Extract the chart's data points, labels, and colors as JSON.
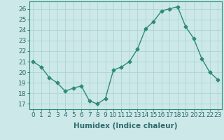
{
  "x": [
    0,
    1,
    2,
    3,
    4,
    5,
    6,
    7,
    8,
    9,
    10,
    11,
    12,
    13,
    14,
    15,
    16,
    17,
    18,
    19,
    20,
    21,
    22,
    23
  ],
  "y": [
    21,
    20.5,
    19.5,
    19,
    18.2,
    18.5,
    18.7,
    17.3,
    17,
    17.5,
    20.2,
    20.5,
    21,
    22.2,
    24.1,
    24.8,
    25.8,
    26.0,
    26.2,
    24.3,
    23.2,
    21.3,
    20.0,
    19.3
  ],
  "line_color": "#2e8b74",
  "bg_color": "#cce8e8",
  "grid_color": "#afd4d4",
  "xlabel": "Humidex (Indice chaleur)",
  "ylim": [
    16.5,
    26.7
  ],
  "xlim": [
    -0.5,
    23.5
  ],
  "yticks": [
    17,
    18,
    19,
    20,
    21,
    22,
    23,
    24,
    25,
    26
  ],
  "xticks": [
    0,
    1,
    2,
    3,
    4,
    5,
    6,
    7,
    8,
    9,
    10,
    11,
    12,
    13,
    14,
    15,
    16,
    17,
    18,
    19,
    20,
    21,
    22,
    23
  ],
  "xtick_labels": [
    "0",
    "1",
    "2",
    "3",
    "4",
    "5",
    "6",
    "7",
    "8",
    "9",
    "10",
    "11",
    "12",
    "13",
    "14",
    "15",
    "16",
    "17",
    "18",
    "19",
    "20",
    "21",
    "22",
    "23"
  ],
  "marker": "D",
  "marker_size": 2.5,
  "line_width": 1.0,
  "tick_fontsize": 6.5,
  "label_fontsize": 7.5
}
